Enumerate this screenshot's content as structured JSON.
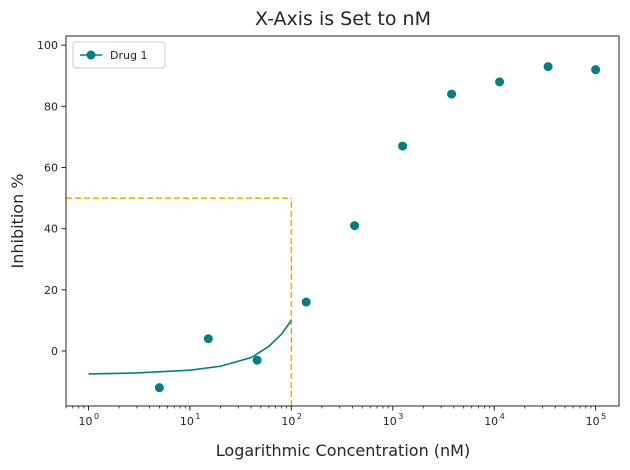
{
  "chart_data": {
    "type": "scatter",
    "title": "X-Axis is Set to nM",
    "xlabel": "Logarithmic Concentration (nM)",
    "ylabel": "Inhibition %",
    "xscale": "log",
    "xlim": [
      0.6,
      170000
    ],
    "ylim": [
      -18,
      103
    ],
    "x_ticks": [
      1,
      10,
      100,
      1000,
      10000,
      100000
    ],
    "x_tick_labels": [
      {
        "base": "10",
        "exp": "0"
      },
      {
        "base": "10",
        "exp": "1"
      },
      {
        "base": "10",
        "exp": "2"
      },
      {
        "base": "10",
        "exp": "3"
      },
      {
        "base": "10",
        "exp": "4"
      },
      {
        "base": "10",
        "exp": "5"
      }
    ],
    "y_ticks": [
      0,
      20,
      40,
      60,
      80,
      100
    ],
    "y_tick_labels": [
      "0",
      "20",
      "40",
      "60",
      "80",
      "100"
    ],
    "grid": false,
    "legend_position": "top-left",
    "series": [
      {
        "name": "Drug 1",
        "color": "#008080",
        "marker": "circle",
        "points": [
          {
            "x": 5,
            "y": -12
          },
          {
            "x": 15.2,
            "y": 4
          },
          {
            "x": 46,
            "y": -3
          },
          {
            "x": 140,
            "y": 16
          },
          {
            "x": 420,
            "y": 41
          },
          {
            "x": 1250,
            "y": 67
          },
          {
            "x": 3800,
            "y": 84
          },
          {
            "x": 11300,
            "y": 88
          },
          {
            "x": 34000,
            "y": 93
          },
          {
            "x": 100000,
            "y": 92
          }
        ],
        "fit_curve": [
          {
            "x": 1,
            "y": -7.5
          },
          {
            "x": 3,
            "y": -7.2
          },
          {
            "x": 10,
            "y": -6.3
          },
          {
            "x": 20,
            "y": -5
          },
          {
            "x": 40,
            "y": -2.2
          },
          {
            "x": 60,
            "y": 1.5
          },
          {
            "x": 80,
            "y": 5.5
          },
          {
            "x": 100,
            "y": 10
          }
        ]
      }
    ],
    "reference_lines": [
      {
        "type": "horizontal",
        "y": 50,
        "x_from": 0.6,
        "x_to": 100,
        "color": "#FFA500",
        "style": "dashed"
      },
      {
        "type": "vertical",
        "x": 100,
        "y_from": -18,
        "y_to": 50,
        "color": "#FFA500",
        "style": "dashed"
      }
    ]
  }
}
